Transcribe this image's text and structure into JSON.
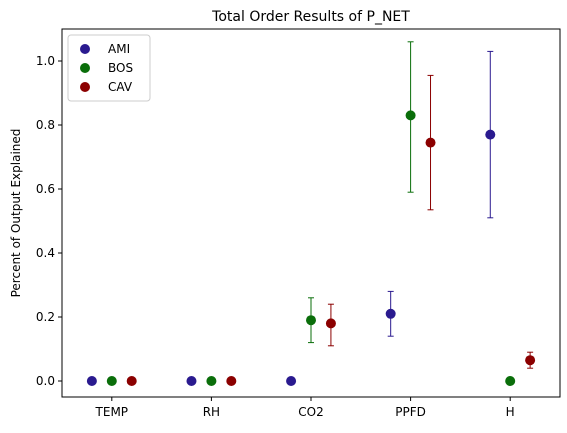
{
  "chart_data": {
    "type": "scatter",
    "title": "Total Order Results of P_NET",
    "xlabel": "",
    "ylabel": "Percent of Output Explained",
    "categories": [
      "TEMP",
      "RH",
      "CO2",
      "PPFD",
      "H"
    ],
    "ylim": [
      -0.05,
      1.1
    ],
    "yticks": [
      "0.0",
      "0.2",
      "0.4",
      "0.6",
      "0.8",
      "1.0"
    ],
    "legend_position": "top-left",
    "grid": false,
    "series": [
      {
        "name": "AMI",
        "color": "#2a1a8f",
        "offset": -0.2,
        "points": [
          {
            "category": "TEMP",
            "value": 0.0,
            "err_low": null,
            "err_high": null
          },
          {
            "category": "RH",
            "value": 0.0,
            "err_low": null,
            "err_high": null
          },
          {
            "category": "CO2",
            "value": 0.0,
            "err_low": null,
            "err_high": null
          },
          {
            "category": "PPFD",
            "value": 0.21,
            "err_low": 0.14,
            "err_high": 0.28
          },
          {
            "category": "H",
            "value": 0.77,
            "err_low": 0.51,
            "err_high": 1.03
          }
        ]
      },
      {
        "name": "BOS",
        "color": "#0a6e0a",
        "offset": 0.0,
        "points": [
          {
            "category": "TEMP",
            "value": 0.0,
            "err_low": null,
            "err_high": null
          },
          {
            "category": "RH",
            "value": 0.0,
            "err_low": null,
            "err_high": null
          },
          {
            "category": "CO2",
            "value": 0.19,
            "err_low": 0.12,
            "err_high": 0.26
          },
          {
            "category": "PPFD",
            "value": 0.83,
            "err_low": 0.59,
            "err_high": 1.06
          },
          {
            "category": "H",
            "value": 0.0,
            "err_low": null,
            "err_high": null
          }
        ]
      },
      {
        "name": "CAV",
        "color": "#8b0000",
        "offset": 0.2,
        "points": [
          {
            "category": "TEMP",
            "value": 0.0,
            "err_low": null,
            "err_high": null
          },
          {
            "category": "RH",
            "value": 0.0,
            "err_low": null,
            "err_high": null
          },
          {
            "category": "CO2",
            "value": 0.18,
            "err_low": 0.11,
            "err_high": 0.24
          },
          {
            "category": "PPFD",
            "value": 0.745,
            "err_low": 0.535,
            "err_high": 0.955
          },
          {
            "category": "H",
            "value": 0.065,
            "err_low": 0.04,
            "err_high": 0.09
          }
        ]
      }
    ]
  }
}
